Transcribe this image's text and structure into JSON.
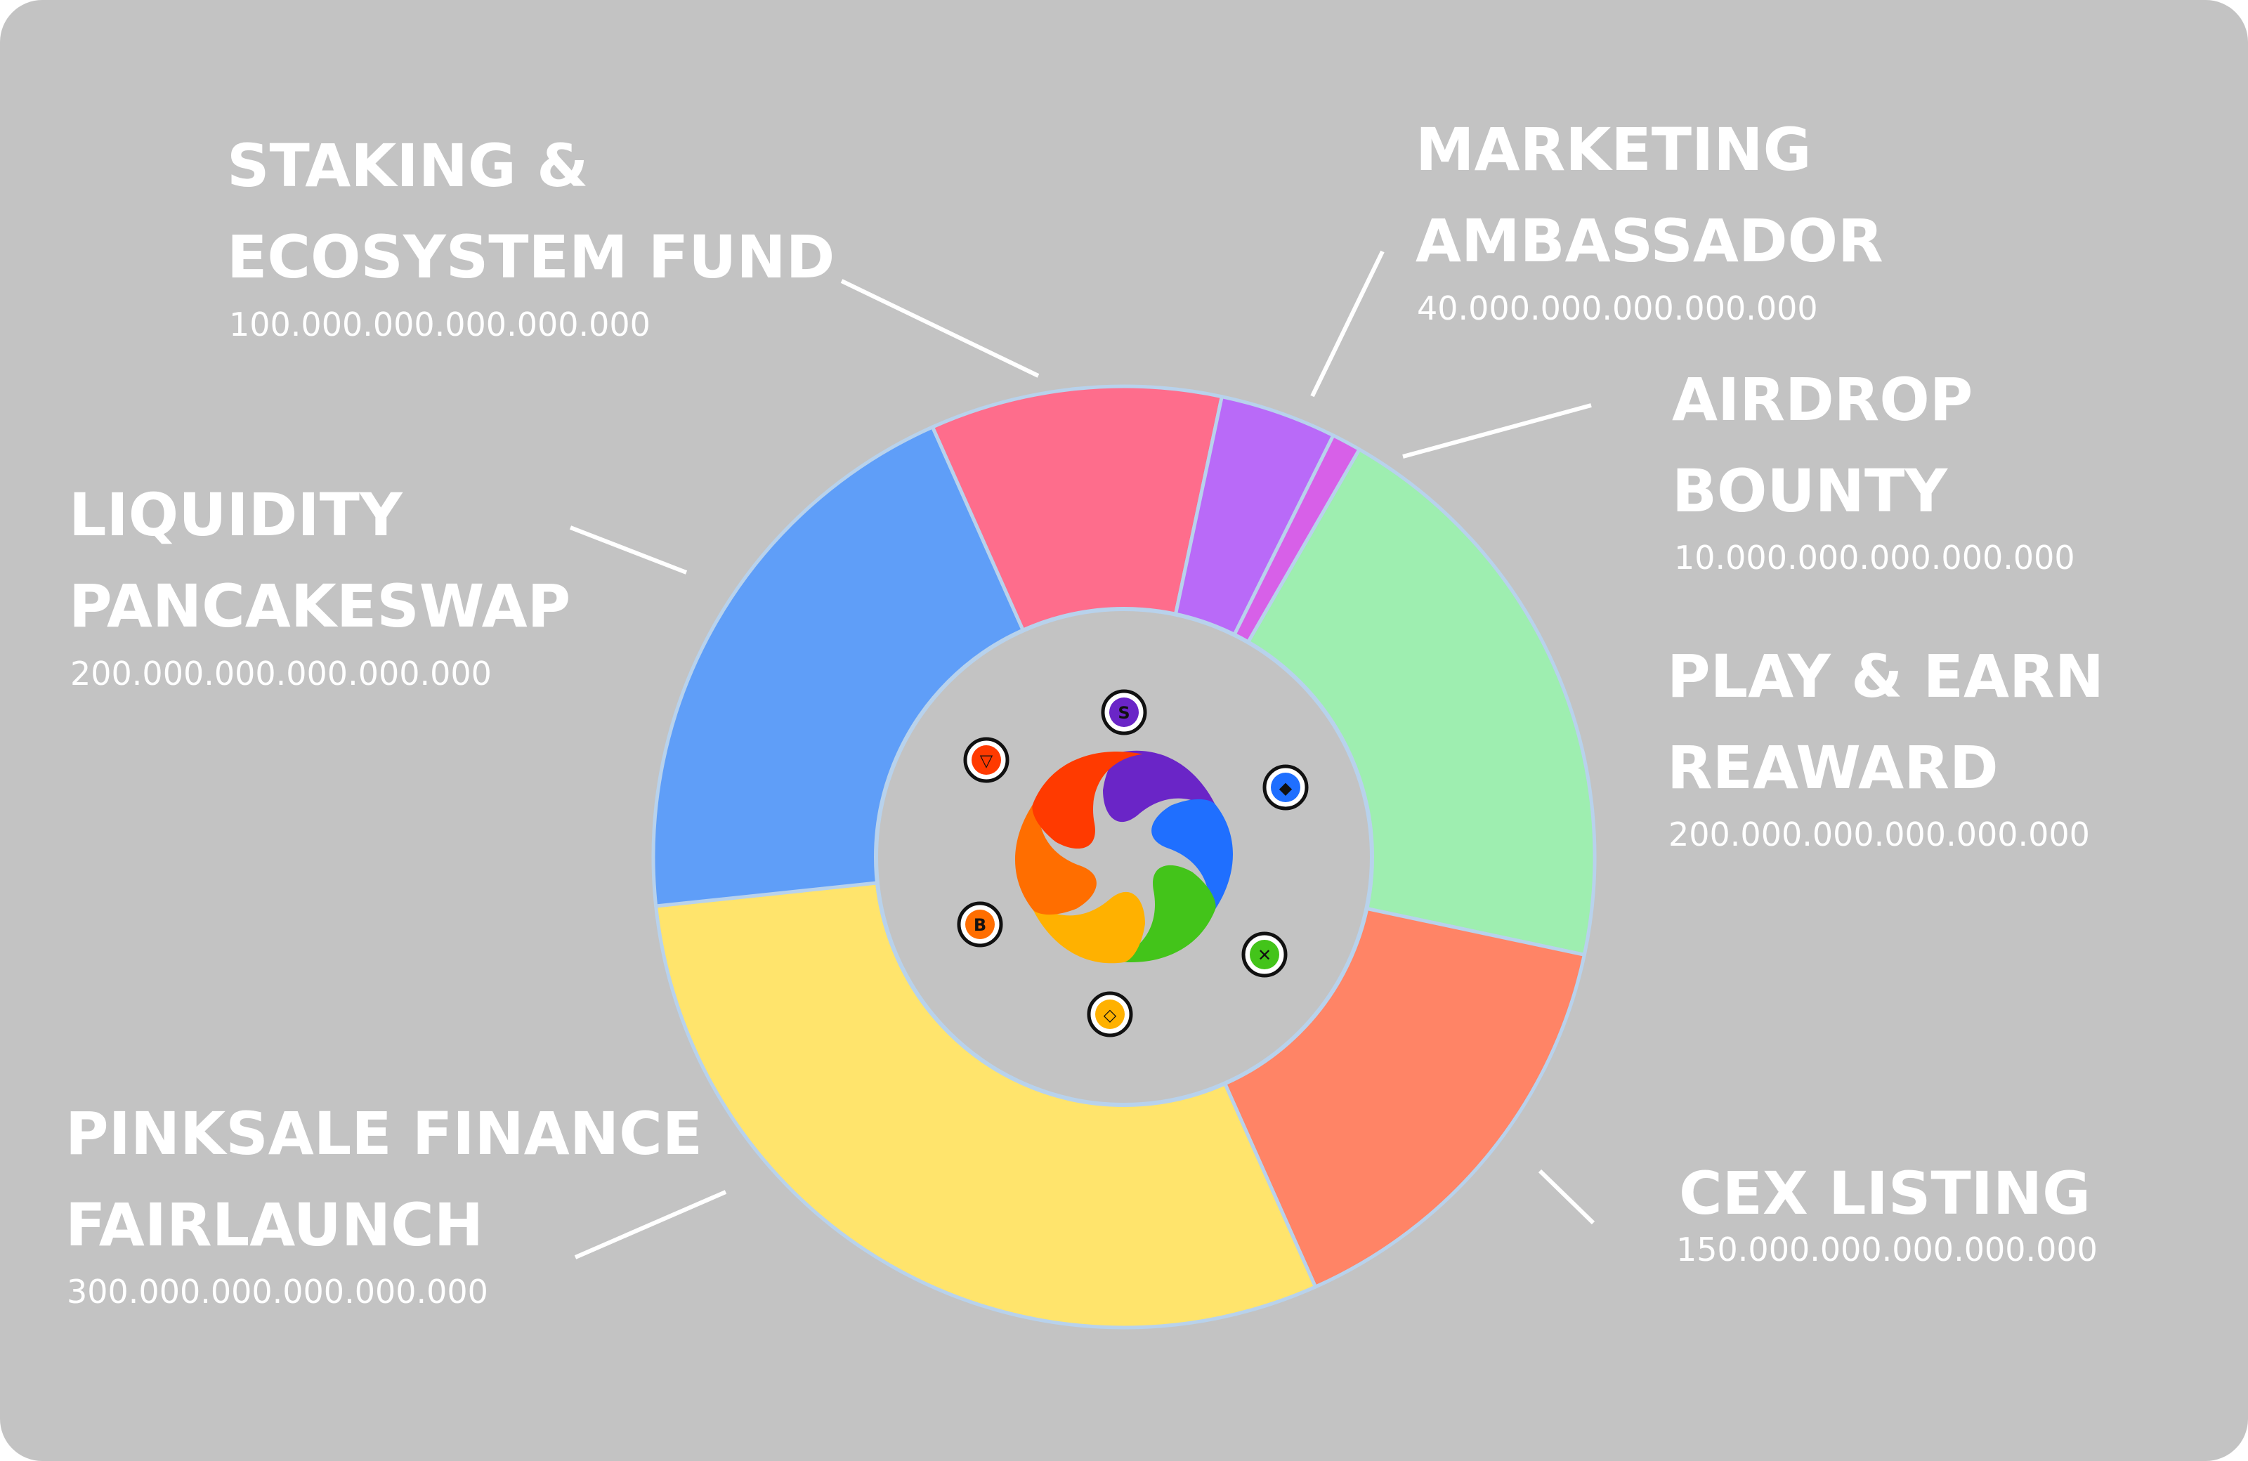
{
  "chart_data": {
    "type": "pie",
    "donut": true,
    "segments": [
      {
        "line1": "PLAY & EARN",
        "line2": "REAWARD",
        "amount": "200.000.000.000.000.000",
        "value": 200000000000000000,
        "color": "#9eeeb0"
      },
      {
        "line1": "CEX LISTING",
        "line2": "",
        "amount": "150.000.000.000.000.000",
        "value": 150000000000000000,
        "color": "#ff8466"
      },
      {
        "line1": "PINKSALE FINANCE",
        "line2": "FAIRLAUNCH",
        "amount": "300.000.000.000.000.000",
        "value": 300000000000000000,
        "color": "#ffe46c"
      },
      {
        "line1": "LIQUIDITY",
        "line2": "PANCAKESWAP",
        "amount": "200.000.000.000.000.000",
        "value": 200000000000000000,
        "color": "#5f9ef8"
      },
      {
        "line1": "STAKING &",
        "line2": "ECOSYSTEM FUND",
        "amount": "100.000.000.000.000.000",
        "value": 100000000000000000,
        "color": "#fe6d8c"
      },
      {
        "line1": "MARKETING",
        "line2": "AMBASSADOR",
        "amount": "40.000.000.000.000.000",
        "value": 40000000000000000,
        "color": "#b96af8"
      },
      {
        "line1": "AIRDROP",
        "line2": "BOUNTY",
        "amount": "10.000.000.000.000.000",
        "value": 10000000000000000,
        "color": "#d760e8"
      }
    ],
    "start_angle_deg": 30,
    "direction": "clockwise",
    "colors": {
      "background": "#c3c3c3",
      "separator": "#b8d2ec",
      "center": "#c3c3c3",
      "label": "#ffffff"
    },
    "center_logo": {
      "name": "multicolor-swirl-logo",
      "coin_icons": [
        "solana-coin-icon",
        "ethereum-coin-icon",
        "xrp-coin-icon",
        "bnb-coin-icon",
        "bitcoin-coin-icon",
        "tron-coin-icon"
      ]
    }
  }
}
